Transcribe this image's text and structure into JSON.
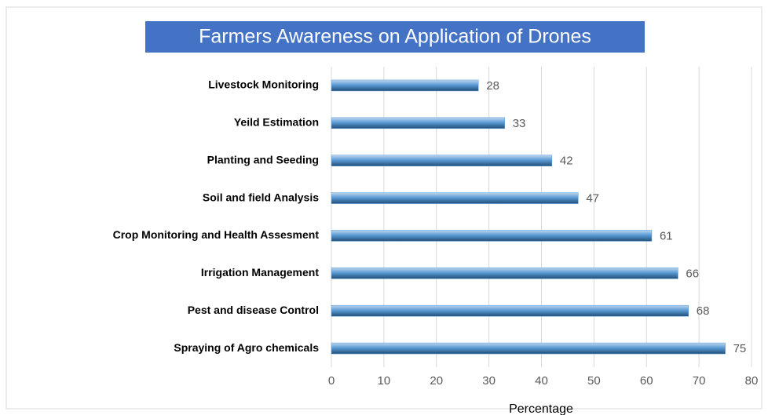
{
  "chart_data": {
    "type": "bar",
    "orientation": "horizontal",
    "title": "Farmers Awareness on Application of Drones",
    "x_label": "Percentage",
    "categories": [
      "Livestock Monitoring",
      "Yeild Estimation",
      "Planting and Seeding",
      "Soil and field Analysis",
      "Crop Monitoring and Health Assesment",
      "Irrigation Management",
      "Pest and disease Control",
      "Spraying of Agro chemicals"
    ],
    "values": [
      28,
      33,
      42,
      47,
      61,
      66,
      68,
      75
    ],
    "color": "#5b9bd5",
    "xlim": [
      0,
      80
    ],
    "xticks": [
      0,
      10,
      20,
      30,
      40,
      50,
      60,
      70,
      80
    ],
    "grid": true
  }
}
